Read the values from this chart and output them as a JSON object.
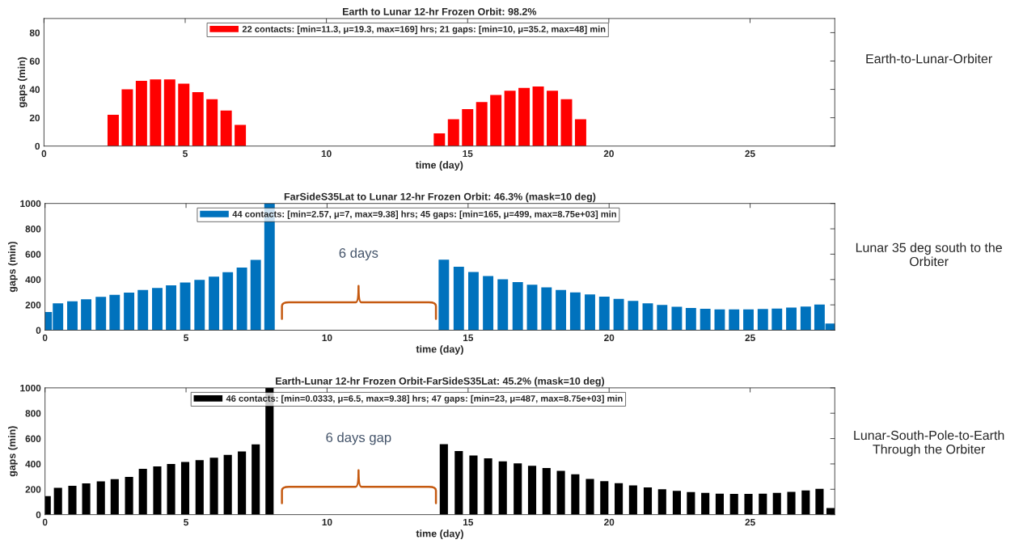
{
  "chart_data": [
    {
      "type": "bar",
      "title": "Earth to Lunar 12-hr Frozen Orbit: 98.2%",
      "xlabel": "time (day)",
      "ylabel": "gaps (min)",
      "x": [
        2.45,
        2.95,
        3.45,
        3.95,
        4.45,
        4.95,
        5.45,
        5.95,
        6.45,
        6.95,
        14.0,
        14.5,
        15.0,
        15.5,
        16.0,
        16.5,
        17.0,
        17.5,
        18.0,
        18.5,
        19.0
      ],
      "series": [
        {
          "name": "22 contacts: [min=11.3, μ=19.3, max=169] hrs; 21 gaps: [min=10, μ=35.2, max=48] min",
          "color": "#ff0000",
          "values": [
            22,
            40,
            46,
            47,
            47,
            44,
            38,
            33,
            25,
            15,
            9,
            19,
            26,
            31,
            36,
            39,
            41,
            42,
            39,
            33,
            19
          ]
        }
      ],
      "xlim": [
        0,
        28
      ],
      "xticks": [
        0,
        5,
        10,
        15,
        20,
        25
      ],
      "ylim": [
        0,
        90
      ],
      "yticks": [
        0,
        20,
        40,
        60,
        80
      ],
      "legend": "top",
      "annotations": [
        "Earth-to-Lunar-Orbiter"
      ]
    },
    {
      "type": "bar",
      "title": "FarSideS35Lat to Lunar 12-hr Frozen Orbit: 46.3% (mask=10 deg)",
      "xlabel": "time (day)",
      "ylabel": "gaps (min)",
      "x": [
        0.06,
        0.46,
        0.97,
        1.46,
        1.98,
        2.47,
        2.98,
        3.47,
        3.98,
        4.47,
        4.97,
        5.48,
        5.99,
        6.48,
        6.98,
        7.47,
        7.96,
        14.14,
        14.67,
        15.19,
        15.71,
        16.23,
        16.76,
        17.27,
        17.78,
        18.29,
        18.8,
        19.32,
        19.83,
        20.34,
        20.85,
        21.37,
        21.88,
        22.4,
        22.9,
        23.41,
        23.92,
        24.43,
        24.94,
        25.45,
        25.95,
        26.46,
        26.97,
        27.46,
        27.85
      ],
      "series": [
        {
          "name": "44 contacts: [min=2.57, μ=7, max=9.38] hrs; 45 gaps: [min=165, μ=499, max=8.75e+03] min",
          "color": "#0072bd",
          "values": [
            144,
            212,
            228,
            244,
            263,
            279,
            297,
            317,
            333,
            354,
            377,
            397,
            422,
            457,
            495,
            555,
            1000,
            557,
            500,
            459,
            427,
            402,
            379,
            358,
            338,
            317,
            299,
            283,
            265,
            247,
            231,
            212,
            199,
            185,
            176,
            169,
            164,
            164,
            164,
            167,
            171,
            178,
            187,
            203,
            53
          ]
        }
      ],
      "xlim": [
        0,
        28
      ],
      "xticks": [
        0,
        5,
        10,
        15,
        20,
        25
      ],
      "ylim": [
        0,
        1000
      ],
      "yticks": [
        0,
        200,
        400,
        600,
        800,
        1000
      ],
      "legend": "top",
      "annotations": [
        "6 days",
        "Lunar 35 deg south to the Orbiter"
      ]
    },
    {
      "type": "bar",
      "title": "Earth-Lunar 12-hr Frozen Orbit-FarSideS35Lat: 45.2% (mask=10 deg)",
      "xlabel": "time (day)",
      "ylabel": "gaps (min)",
      "x": [
        0.06,
        0.46,
        0.97,
        1.46,
        1.98,
        2.47,
        2.98,
        3.47,
        3.98,
        4.47,
        4.97,
        5.48,
        5.99,
        6.48,
        6.98,
        7.47,
        7.96,
        14.14,
        14.67,
        15.19,
        15.71,
        16.23,
        16.76,
        17.27,
        17.78,
        18.29,
        18.8,
        19.32,
        19.83,
        20.34,
        20.85,
        21.37,
        21.88,
        22.4,
        22.9,
        23.41,
        23.92,
        24.43,
        24.94,
        25.45,
        25.95,
        26.46,
        26.97,
        27.46,
        27.85
      ],
      "series": [
        {
          "name": "46 contacts: [min=0.0333, μ=6.5, max=9.38] hrs; 47 gaps: [min=23, μ=487, max=8.75e+03] min",
          "color": "#000000",
          "values": [
            146,
            212,
            228,
            246,
            262,
            280,
            298,
            362,
            380,
            399,
            415,
            430,
            449,
            472,
            499,
            554,
            1000,
            556,
            501,
            467,
            444,
            421,
            405,
            385,
            367,
            346,
            319,
            282,
            264,
            248,
            230,
            214,
            200,
            187,
            178,
            171,
            166,
            164,
            164,
            166,
            171,
            180,
            191,
            203,
            52
          ]
        }
      ],
      "xlim": [
        0,
        28
      ],
      "xticks": [
        0,
        5,
        10,
        15,
        20,
        25
      ],
      "ylim": [
        0,
        1000
      ],
      "yticks": [
        0,
        200,
        400,
        600,
        800,
        1000
      ],
      "legend": "top",
      "annotations": [
        "6 days gap",
        "Lunar-South-Pole-to-Earth Through the Orbiter"
      ]
    }
  ]
}
